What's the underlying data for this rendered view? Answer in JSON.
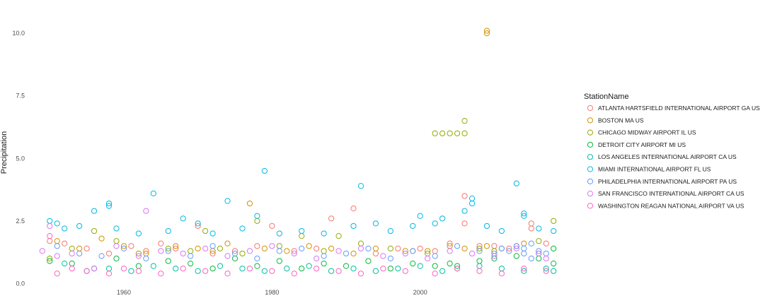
{
  "chart_data": {
    "type": "scatter",
    "title": "",
    "xlabel": "",
    "ylabel": "Precipitation",
    "xlim": [
      1947.3,
      2019.7
    ],
    "ylim": [
      -0.1,
      10.2
    ],
    "x_ticks": [
      1960,
      1980,
      2000
    ],
    "y_ticks": [
      0.0,
      2.5,
      5.0,
      7.5,
      10.0
    ],
    "y_tick_labels": [
      "0.0",
      "2.5",
      "5.0",
      "7.5",
      "10.0"
    ],
    "grid": false,
    "legend_placement": "right",
    "legend_title": "StationName",
    "marker": "open-circle",
    "series": [
      {
        "name": "ATLANTA HARTSFIELD INTERNATIONAL AIRPORT GA US",
        "color": "#F8766D",
        "points": [
          [
            1950,
            1.7
          ],
          [
            1952,
            1.6
          ],
          [
            1955,
            1.4
          ],
          [
            1958,
            1.2
          ],
          [
            1961,
            1.5
          ],
          [
            1963,
            1.3
          ],
          [
            1965,
            1.6
          ],
          [
            1967,
            1.4
          ],
          [
            1970,
            2.3
          ],
          [
            1972,
            1.2
          ],
          [
            1975,
            1.3
          ],
          [
            1978,
            1.5
          ],
          [
            1980,
            2.3
          ],
          [
            1983,
            1.3
          ],
          [
            1986,
            1.4
          ],
          [
            1988,
            2.6
          ],
          [
            1991,
            3.0
          ],
          [
            1994,
            1.2
          ],
          [
            1997,
            1.4
          ],
          [
            2000,
            1.4
          ],
          [
            2002,
            1.3
          ],
          [
            2004,
            1.6
          ],
          [
            2006,
            3.5
          ],
          [
            2006,
            2.4
          ],
          [
            2008,
            1.5
          ],
          [
            2010,
            1.5
          ],
          [
            2012,
            1.4
          ],
          [
            2015,
            2.4
          ],
          [
            2015,
            2.2
          ],
          [
            2017,
            1.6
          ]
        ]
      },
      {
        "name": "BOSTON MA US",
        "color": "#D39200",
        "points": [
          [
            1951,
            1.7
          ],
          [
            1954,
            1.4
          ],
          [
            1957,
            1.8
          ],
          [
            1960,
            1.5
          ],
          [
            1963,
            1.2
          ],
          [
            1967,
            1.5
          ],
          [
            1970,
            1.4
          ],
          [
            1972,
            1.3
          ],
          [
            1974,
            1.6
          ],
          [
            1977,
            3.2
          ],
          [
            1979,
            1.4
          ],
          [
            1982,
            1.3
          ],
          [
            1985,
            1.5
          ],
          [
            1988,
            1.4
          ],
          [
            1991,
            1.2
          ],
          [
            1994,
            1.4
          ],
          [
            1998,
            1.3
          ],
          [
            2001,
            1.3
          ],
          [
            2004,
            1.5
          ],
          [
            2006,
            1.4
          ],
          [
            2009,
            1.5
          ],
          [
            2009,
            10.0
          ],
          [
            2009,
            10.1
          ],
          [
            2011,
            1.4
          ],
          [
            2014,
            1.6
          ]
        ]
      },
      {
        "name": "CHICAGO MIDWAY AIRPORT IL US",
        "color": "#93AA00",
        "points": [
          [
            1950,
            1.0
          ],
          [
            1953,
            1.4
          ],
          [
            1956,
            2.1
          ],
          [
            1959,
            1.7
          ],
          [
            1962,
            1.2
          ],
          [
            1966,
            1.4
          ],
          [
            1969,
            1.3
          ],
          [
            1971,
            2.1
          ],
          [
            1973,
            1.4
          ],
          [
            1976,
            1.2
          ],
          [
            1978,
            2.5
          ],
          [
            1981,
            1.5
          ],
          [
            1984,
            1.9
          ],
          [
            1987,
            1.3
          ],
          [
            1989,
            1.9
          ],
          [
            1992,
            1.6
          ],
          [
            1996,
            1.4
          ],
          [
            1999,
            1.3
          ],
          [
            2001,
            1.2
          ],
          [
            2002,
            6.0
          ],
          [
            2003,
            6.0
          ],
          [
            2004,
            6.0
          ],
          [
            2005,
            6.0
          ],
          [
            2006,
            6.0
          ],
          [
            2006,
            6.5
          ],
          [
            2008,
            1.4
          ],
          [
            2010,
            1.3
          ],
          [
            2013,
            1.5
          ],
          [
            2016,
            1.7
          ],
          [
            2018,
            2.5
          ]
        ]
      },
      {
        "name": "DETROIT CITY AIRPORT MI US",
        "color": "#00BA38",
        "points": [
          [
            1950,
            0.9
          ],
          [
            1953,
            0.8
          ],
          [
            1956,
            0.6
          ],
          [
            1959,
            1.0
          ],
          [
            1962,
            0.7
          ],
          [
            1966,
            0.9
          ],
          [
            1969,
            0.8
          ],
          [
            1972,
            0.6
          ],
          [
            1975,
            1.0
          ],
          [
            1978,
            0.7
          ],
          [
            1981,
            0.9
          ],
          [
            1984,
            0.6
          ],
          [
            1987,
            0.8
          ],
          [
            1990,
            0.7
          ],
          [
            1993,
            0.9
          ],
          [
            1996,
            0.6
          ],
          [
            1999,
            0.8
          ],
          [
            2002,
            0.7
          ],
          [
            2004,
            0.8
          ],
          [
            2005,
            0.7
          ],
          [
            2008,
            0.9
          ],
          [
            2010,
            1.0
          ],
          [
            2013,
            1.1
          ],
          [
            2016,
            1.2
          ],
          [
            2016,
            1.0
          ],
          [
            2018,
            0.8
          ],
          [
            2018,
            1.4
          ]
        ]
      },
      {
        "name": "LOS ANGELES INTERNATIONAL AIRPORT CA US",
        "color": "#00C19F",
        "points": [
          [
            1952,
            0.8
          ],
          [
            1955,
            0.5
          ],
          [
            1958,
            0.6
          ],
          [
            1961,
            0.5
          ],
          [
            1964,
            0.7
          ],
          [
            1967,
            0.6
          ],
          [
            1970,
            0.5
          ],
          [
            1973,
            0.7
          ],
          [
            1976,
            0.6
          ],
          [
            1979,
            0.5
          ],
          [
            1982,
            0.6
          ],
          [
            1985,
            0.7
          ],
          [
            1988,
            0.5
          ],
          [
            1991,
            0.6
          ],
          [
            1994,
            0.5
          ],
          [
            1997,
            0.6
          ],
          [
            2000,
            0.7
          ],
          [
            2003,
            0.5
          ],
          [
            2005,
            0.6
          ],
          [
            2008,
            0.7
          ],
          [
            2011,
            0.6
          ],
          [
            2014,
            0.5
          ],
          [
            2017,
            0.6
          ],
          [
            2018,
            0.5
          ]
        ]
      },
      {
        "name": "MIAMI INTERNATIONAL AIRPORT FL US",
        "color": "#00B9E3",
        "points": [
          [
            1950,
            2.5
          ],
          [
            1951,
            2.4
          ],
          [
            1952,
            2.2
          ],
          [
            1954,
            2.3
          ],
          [
            1956,
            2.9
          ],
          [
            1958,
            3.2
          ],
          [
            1958,
            3.1
          ],
          [
            1959,
            2.2
          ],
          [
            1962,
            2.0
          ],
          [
            1964,
            3.6
          ],
          [
            1966,
            2.1
          ],
          [
            1968,
            2.6
          ],
          [
            1970,
            2.4
          ],
          [
            1972,
            2.0
          ],
          [
            1974,
            3.3
          ],
          [
            1976,
            2.2
          ],
          [
            1978,
            2.7
          ],
          [
            1979,
            4.5
          ],
          [
            1981,
            2.0
          ],
          [
            1984,
            2.1
          ],
          [
            1987,
            2.0
          ],
          [
            1991,
            2.3
          ],
          [
            1992,
            3.9
          ],
          [
            1994,
            2.4
          ],
          [
            1996,
            2.1
          ],
          [
            1999,
            2.3
          ],
          [
            2000,
            2.7
          ],
          [
            2002,
            2.4
          ],
          [
            2003,
            2.6
          ],
          [
            2006,
            2.9
          ],
          [
            2007,
            3.4
          ],
          [
            2007,
            3.2
          ],
          [
            2009,
            2.3
          ],
          [
            2011,
            2.1
          ],
          [
            2013,
            4.0
          ],
          [
            2014,
            2.7
          ],
          [
            2014,
            2.8
          ],
          [
            2016,
            2.2
          ],
          [
            2018,
            2.1
          ]
        ]
      },
      {
        "name": "PHILADELPHIA INTERNATIONAL AIRPORT PA US",
        "color": "#619CFF",
        "points": [
          [
            1951,
            1.5
          ],
          [
            1954,
            1.2
          ],
          [
            1957,
            1.1
          ],
          [
            1960,
            1.4
          ],
          [
            1963,
            1.0
          ],
          [
            1966,
            1.3
          ],
          [
            1969,
            1.1
          ],
          [
            1972,
            1.5
          ],
          [
            1975,
            1.2
          ],
          [
            1978,
            1.0
          ],
          [
            1981,
            1.3
          ],
          [
            1984,
            1.4
          ],
          [
            1987,
            1.1
          ],
          [
            1990,
            1.2
          ],
          [
            1993,
            1.4
          ],
          [
            1996,
            1.0
          ],
          [
            1999,
            1.3
          ],
          [
            2002,
            1.1
          ],
          [
            2005,
            1.5
          ],
          [
            2008,
            1.3
          ],
          [
            2010,
            1.2
          ],
          [
            2011,
            1.4
          ],
          [
            2012,
            1.3
          ],
          [
            2013,
            1.5
          ],
          [
            2014,
            1.4
          ],
          [
            2014,
            1.2
          ],
          [
            2015,
            1.6
          ],
          [
            2015,
            1.0
          ],
          [
            2016,
            1.3
          ],
          [
            2017,
            1.2
          ]
        ]
      },
      {
        "name": "SAN FRANCISCO INTERNATIONAL AIRPORT CA US",
        "color": "#DB72FB",
        "points": [
          [
            1949,
            1.3
          ],
          [
            1950,
            2.3
          ],
          [
            1951,
            1.1
          ],
          [
            1953,
            1.2
          ],
          [
            1956,
            0.6
          ],
          [
            1959,
            1.5
          ],
          [
            1962,
            1.1
          ],
          [
            1963,
            2.9
          ],
          [
            1965,
            1.3
          ],
          [
            1968,
            1.2
          ],
          [
            1971,
            1.4
          ],
          [
            1974,
            1.1
          ],
          [
            1977,
            1.3
          ],
          [
            1980,
            1.5
          ],
          [
            1983,
            1.2
          ],
          [
            1986,
            1.0
          ],
          [
            1989,
            1.3
          ],
          [
            1992,
            1.4
          ],
          [
            1995,
            1.1
          ],
          [
            1998,
            1.2
          ],
          [
            2001,
            1.0
          ],
          [
            2004,
            1.3
          ],
          [
            2007,
            1.2
          ],
          [
            2010,
            1.1
          ],
          [
            2013,
            1.4
          ],
          [
            2016,
            1.2
          ],
          [
            2017,
            1.0
          ]
        ]
      },
      {
        "name": "WASHINGTON REAGAN NATIONAL AIRPORT VA US",
        "color": "#FF61C3",
        "points": [
          [
            1950,
            1.9
          ],
          [
            1951,
            0.4
          ],
          [
            1953,
            0.6
          ],
          [
            1955,
            0.5
          ],
          [
            1958,
            0.4
          ],
          [
            1960,
            0.6
          ],
          [
            1962,
            0.5
          ],
          [
            1965,
            0.4
          ],
          [
            1968,
            0.6
          ],
          [
            1971,
            0.5
          ],
          [
            1974,
            0.4
          ],
          [
            1977,
            0.6
          ],
          [
            1980,
            0.5
          ],
          [
            1983,
            0.4
          ],
          [
            1986,
            0.6
          ],
          [
            1989,
            0.5
          ],
          [
            1992,
            0.4
          ],
          [
            1995,
            0.6
          ],
          [
            1998,
            0.5
          ],
          [
            2002,
            0.4
          ],
          [
            2005,
            0.6
          ],
          [
            2008,
            0.5
          ],
          [
            2011,
            0.4
          ],
          [
            2014,
            0.6
          ],
          [
            2017,
            0.5
          ]
        ]
      }
    ]
  }
}
